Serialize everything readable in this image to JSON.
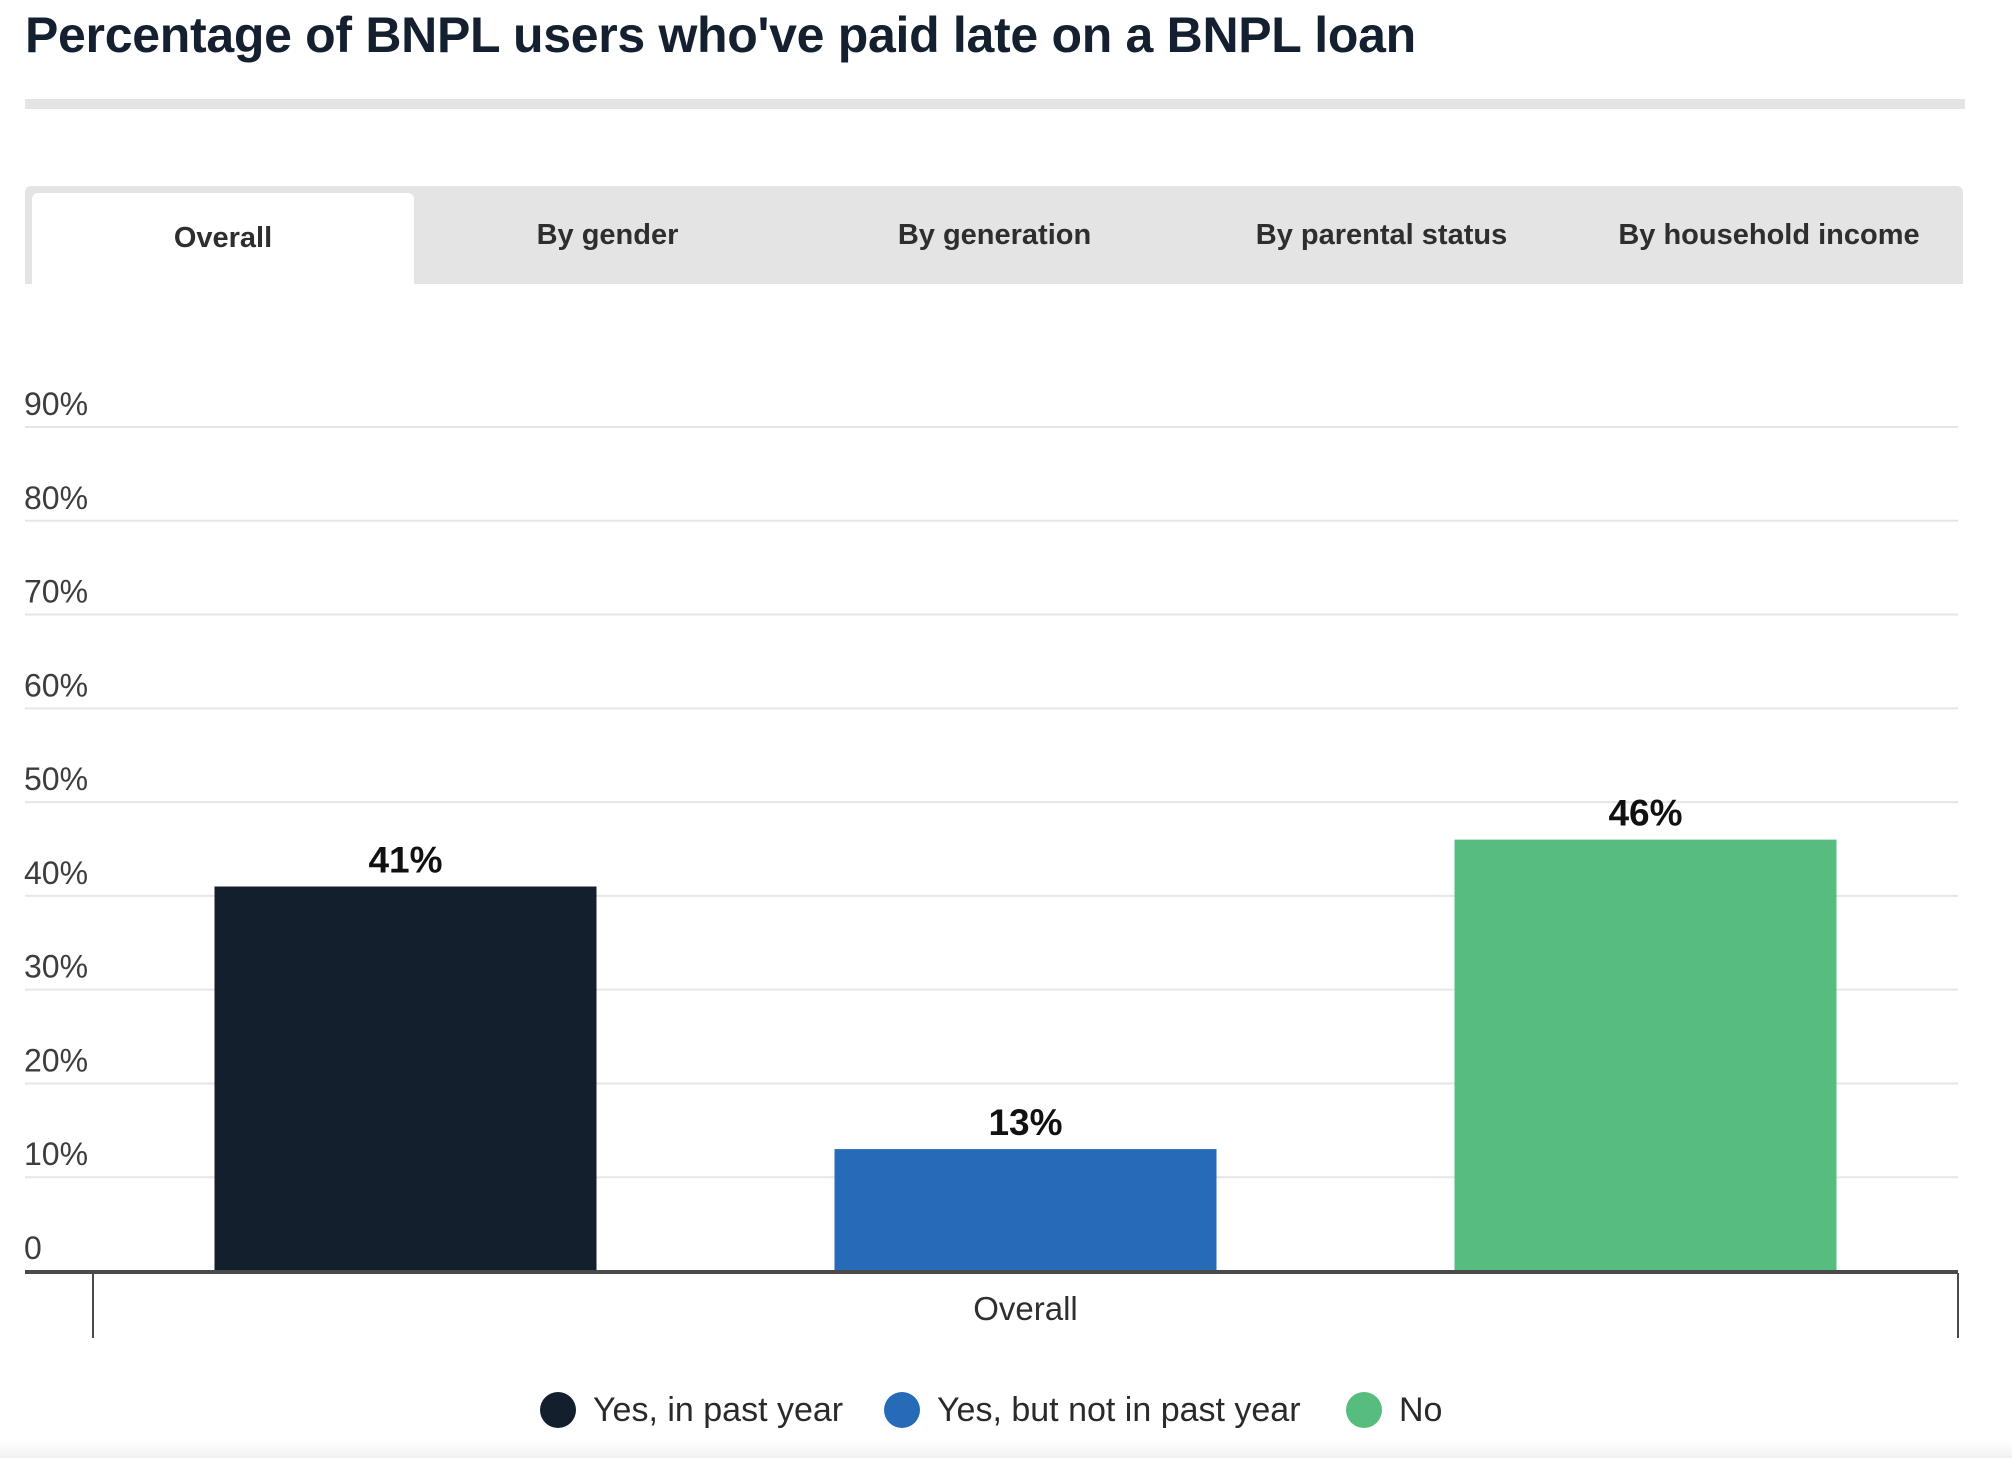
{
  "title": "Percentage of BNPL users who've paid late on a BNPL loan",
  "tabs": [
    {
      "label": "Overall",
      "active": true
    },
    {
      "label": "By gender",
      "active": false
    },
    {
      "label": "By generation",
      "active": false
    },
    {
      "label": "By parental status",
      "active": false
    },
    {
      "label": "By household income",
      "active": false
    }
  ],
  "colors": {
    "yes_past_year": "#141f2e",
    "yes_not_past_year": "#256bb8",
    "no": "#57bd7e"
  },
  "chart_data": {
    "type": "bar",
    "categories": [
      "Overall"
    ],
    "series": [
      {
        "name": "Yes, in past year",
        "values": [
          41
        ],
        "label": "41%",
        "color": "#141f2e"
      },
      {
        "name": "Yes, but not in past year",
        "values": [
          13
        ],
        "label": "13%",
        "color": "#256bb8"
      },
      {
        "name": "No",
        "values": [
          46
        ],
        "label": "46%",
        "color": "#57bd7e"
      }
    ],
    "ylim": [
      0,
      90
    ],
    "yticks": [
      0,
      10,
      20,
      30,
      40,
      50,
      60,
      70,
      80,
      90
    ],
    "ytick_labels": [
      "0",
      "10%",
      "20%",
      "30%",
      "40%",
      "50%",
      "60%",
      "70%",
      "80%",
      "90%"
    ],
    "xlabel": "",
    "ylabel": "",
    "grid": true,
    "legend_position": "bottom-center"
  }
}
